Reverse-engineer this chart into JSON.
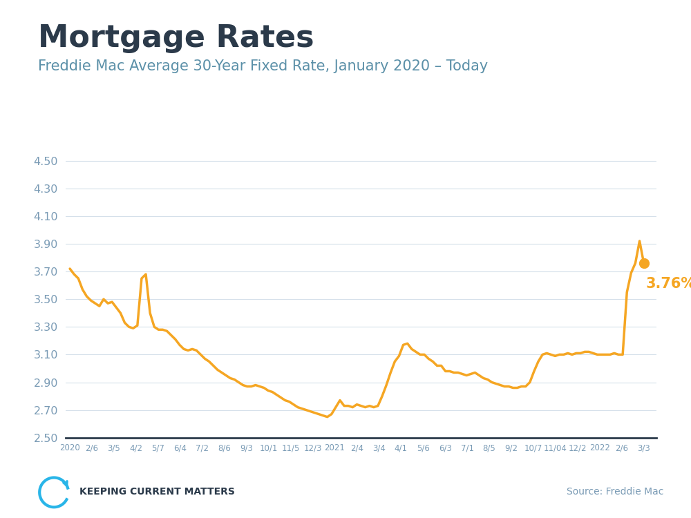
{
  "title": "Mortgage Rates",
  "subtitle": "Freddie Mac Average 30-Year Fixed Rate, January 2020 – Today",
  "title_color": "#2b3a4a",
  "subtitle_color": "#5b90a8",
  "line_color": "#f5a623",
  "dot_color": "#f5a623",
  "annotation_text": "3.76%",
  "annotation_color": "#f5a623",
  "tick_color": "#7a9bb5",
  "background_color": "#ffffff",
  "top_bar_color": "#29b5e8",
  "ylim": [
    2.5,
    4.65
  ],
  "yticks": [
    2.5,
    2.7,
    2.9,
    3.1,
    3.3,
    3.5,
    3.7,
    3.9,
    4.1,
    4.3,
    4.5
  ],
  "x_labels": [
    "2020",
    "2/6",
    "3/5",
    "4/2",
    "5/7",
    "6/4",
    "7/2",
    "8/6",
    "9/3",
    "10/1",
    "11/5",
    "12/3",
    "2021",
    "2/4",
    "3/4",
    "4/1",
    "5/6",
    "6/3",
    "7/1",
    "8/5",
    "9/2",
    "10/7",
    "11/04",
    "12/2",
    "2022",
    "2/6",
    "3/3"
  ],
  "source_text": "Source: Freddie Mac",
  "logo_text": "KEEPING CURRENT MATTERS",
  "data_y": [
    3.72,
    3.68,
    3.65,
    3.57,
    3.52,
    3.49,
    3.47,
    3.45,
    3.5,
    3.47,
    3.48,
    3.44,
    3.4,
    3.33,
    3.3,
    3.29,
    3.31,
    3.65,
    3.68,
    3.4,
    3.3,
    3.28,
    3.28,
    3.27,
    3.24,
    3.21,
    3.17,
    3.14,
    3.13,
    3.14,
    3.13,
    3.1,
    3.07,
    3.05,
    3.02,
    2.99,
    2.97,
    2.95,
    2.93,
    2.92,
    2.9,
    2.88,
    2.87,
    2.87,
    2.88,
    2.87,
    2.86,
    2.84,
    2.83,
    2.81,
    2.79,
    2.77,
    2.76,
    2.74,
    2.72,
    2.71,
    2.7,
    2.69,
    2.68,
    2.67,
    2.66,
    2.65,
    2.67,
    2.72,
    2.77,
    2.73,
    2.73,
    2.72,
    2.74,
    2.73,
    2.72,
    2.73,
    2.72,
    2.73,
    2.8,
    2.88,
    2.97,
    3.05,
    3.09,
    3.17,
    3.18,
    3.14,
    3.12,
    3.1,
    3.1,
    3.07,
    3.05,
    3.02,
    3.02,
    2.98,
    2.98,
    2.97,
    2.97,
    2.96,
    2.95,
    2.96,
    2.97,
    2.95,
    2.93,
    2.92,
    2.9,
    2.89,
    2.88,
    2.87,
    2.87,
    2.86,
    2.86,
    2.87,
    2.87,
    2.9,
    2.98,
    3.05,
    3.1,
    3.11,
    3.1,
    3.09,
    3.1,
    3.1,
    3.11,
    3.1,
    3.11,
    3.11,
    3.12,
    3.12,
    3.11,
    3.1,
    3.1,
    3.1,
    3.1,
    3.11,
    3.1,
    3.1,
    3.55,
    3.69,
    3.76,
    3.92,
    3.76
  ],
  "final_value": 3.76,
  "peak_value": 3.92,
  "grid_color": "#d5e0ea",
  "axis_line_color": "#2b3a4a"
}
